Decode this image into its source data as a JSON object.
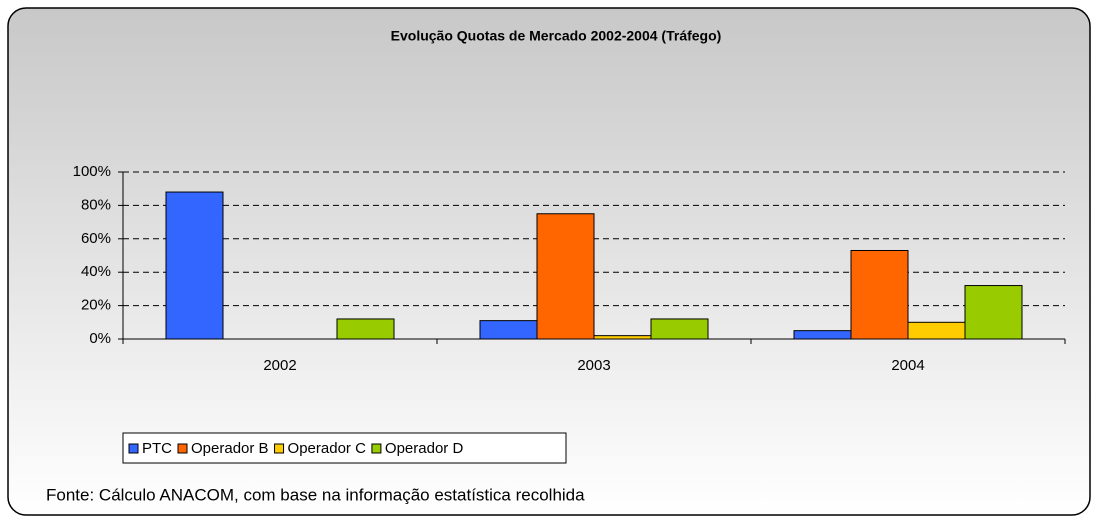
{
  "chart_data": {
    "type": "bar",
    "title": "Evolução Quotas de Mercado 2002-2004 (Tráfego)",
    "categories": [
      "2002",
      "2003",
      "2004"
    ],
    "series": [
      {
        "name": "PTC",
        "color": "#3366ff",
        "values": [
          88,
          11,
          5
        ]
      },
      {
        "name": "Operador B",
        "color": "#ff6600",
        "values": [
          0,
          75,
          53
        ]
      },
      {
        "name": "Operador C",
        "color": "#ffcc00",
        "values": [
          0,
          2,
          10
        ]
      },
      {
        "name": "Operador D",
        "color": "#99cc00",
        "values": [
          12,
          12,
          32
        ]
      }
    ],
    "ylim": [
      0,
      100
    ],
    "yticks": [
      {
        "value": 0,
        "label": "0%"
      },
      {
        "value": 20,
        "label": "20%"
      },
      {
        "value": 40,
        "label": "40%"
      },
      {
        "value": 60,
        "label": "60%"
      },
      {
        "value": 80,
        "label": "80%"
      },
      {
        "value": 100,
        "label": "100%"
      }
    ],
    "grid": true,
    "legend": "bottom-left",
    "source": "Fonte: Cálculo ANACOM, com base na informação estatística recolhida"
  }
}
